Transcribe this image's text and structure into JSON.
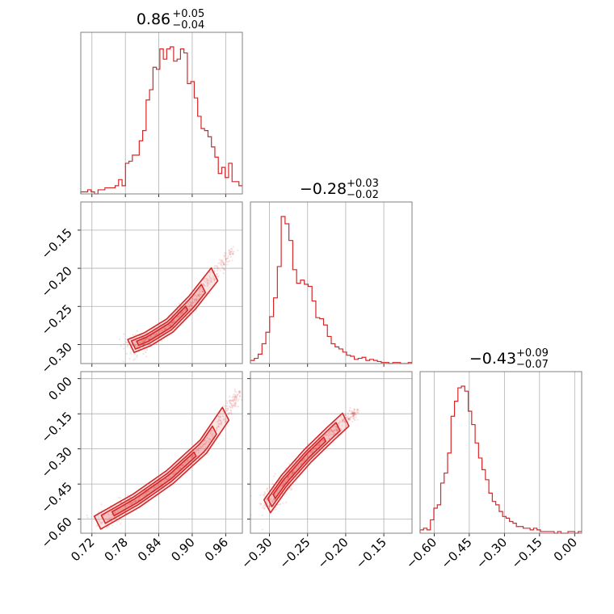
{
  "chart_data": {
    "type": "corner",
    "color": "#d62728",
    "grid": true,
    "parameters": [
      {
        "title": {
          "median": "0.86",
          "plus": "+0.05",
          "minus": "−0.04"
        },
        "range": [
          0.7,
          0.99
        ],
        "ticks": [
          "0.72",
          "0.78",
          "0.84",
          "0.90",
          "0.96"
        ]
      },
      {
        "title": {
          "median": "−0.28",
          "plus": "+0.03",
          "minus": "−0.02"
        },
        "range": [
          -0.325,
          -0.113
        ],
        "ticks": [
          "−0.30",
          "−0.25",
          "−0.20",
          "−0.15"
        ]
      },
      {
        "title": {
          "median": "−0.43",
          "plus": "+0.09",
          "minus": "−0.07"
        },
        "range": [
          -0.66,
          0.03
        ],
        "ticks": [
          "−0.60",
          "−0.45",
          "−0.30",
          "−0.15",
          "0.00"
        ]
      }
    ],
    "histograms": [
      {
        "param": 0,
        "counts": [
          1,
          1,
          2,
          1,
          0,
          2,
          2,
          3,
          3,
          3,
          4,
          7,
          4,
          15,
          16,
          19,
          19,
          26,
          31,
          46,
          51,
          62,
          61,
          71,
          66,
          71,
          72,
          65,
          66,
          71,
          69,
          54,
          55,
          47,
          38,
          32,
          31,
          28,
          23,
          18,
          10,
          13,
          8,
          15,
          6,
          6,
          4
        ]
      },
      {
        "param": 1,
        "counts": [
          3,
          5,
          9,
          19,
          30,
          45,
          63,
          93,
          141,
          134,
          118,
          90,
          77,
          80,
          76,
          74,
          60,
          44,
          43,
          37,
          26,
          19,
          16,
          14,
          11,
          8,
          7,
          4,
          5,
          6,
          3,
          4,
          3,
          2,
          1,
          1,
          0,
          1,
          1,
          0,
          0,
          1
        ]
      },
      {
        "param": 2,
        "counts": [
          2,
          3,
          2,
          8,
          15,
          17,
          30,
          36,
          48,
          70,
          79,
          87,
          88,
          85,
          73,
          65,
          54,
          45,
          38,
          32,
          24,
          19,
          17,
          13,
          10,
          9,
          7,
          6,
          4,
          4,
          3,
          3,
          2,
          3,
          2,
          1,
          1,
          1,
          1,
          0,
          1,
          0,
          0,
          1,
          1,
          0,
          1
        ]
      }
    ],
    "curves": [
      {
        "x_param": 0,
        "y_param": 1,
        "x": [
          0.79,
          0.82,
          0.86,
          0.9,
          0.94,
          0.975
        ],
        "y": [
          -0.302,
          -0.293,
          -0.275,
          -0.245,
          -0.208,
          -0.175
        ]
      },
      {
        "x_param": 0,
        "y_param": 2,
        "x": [
          0.73,
          0.8,
          0.86,
          0.92,
          0.96,
          0.985
        ],
        "y": [
          -0.615,
          -0.52,
          -0.42,
          -0.29,
          -0.15,
          -0.05
        ]
      },
      {
        "x_param": 1,
        "y_param": 2,
        "x": [
          -0.303,
          -0.28,
          -0.25,
          -0.22,
          -0.2,
          -0.185
        ],
        "y": [
          -0.545,
          -0.44,
          -0.33,
          -0.235,
          -0.175,
          -0.14
        ]
      }
    ]
  }
}
